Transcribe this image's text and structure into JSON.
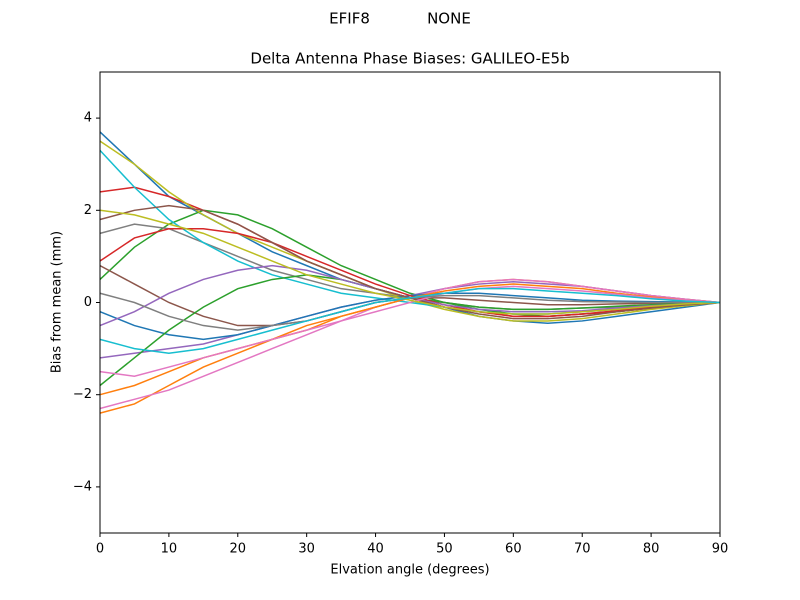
{
  "chart_data": {
    "type": "line",
    "suptitle": "EFIF8            NONE",
    "title": "Delta Antenna Phase Biases: GALILEO-E5b",
    "xlabel": "Elvation angle (degrees)",
    "ylabel": "Bias from mean (mm)",
    "x": [
      0,
      5,
      10,
      15,
      20,
      25,
      30,
      35,
      40,
      45,
      50,
      55,
      60,
      65,
      70,
      75,
      80,
      85,
      90
    ],
    "xlim": [
      0,
      90
    ],
    "xticks": [
      0,
      10,
      20,
      30,
      40,
      50,
      60,
      70,
      80,
      90
    ],
    "ylim": [
      -5,
      5
    ],
    "yticks": [
      {
        "value": -4,
        "label": "−4"
      },
      {
        "value": -2,
        "label": "−2"
      },
      0,
      2,
      4
    ],
    "grid": false,
    "series": [
      {
        "color": "#1f77b4",
        "values": [
          3.7,
          3.0,
          2.3,
          1.9,
          1.5,
          1.1,
          0.8,
          0.5,
          0.3,
          0.1,
          -0.1,
          -0.3,
          -0.4,
          -0.45,
          -0.4,
          -0.3,
          -0.2,
          -0.1,
          0
        ]
      },
      {
        "color": "#ff7f0e",
        "values": [
          -2.4,
          -2.2,
          -1.8,
          -1.4,
          -1.1,
          -0.8,
          -0.5,
          -0.3,
          -0.1,
          0.1,
          0.3,
          0.45,
          0.5,
          0.45,
          0.35,
          0.25,
          0.15,
          0.07,
          0
        ]
      },
      {
        "color": "#2ca02c",
        "values": [
          0.5,
          1.2,
          1.7,
          2.0,
          1.9,
          1.6,
          1.2,
          0.8,
          0.5,
          0.2,
          0,
          -0.15,
          -0.25,
          -0.3,
          -0.25,
          -0.2,
          -0.12,
          -0.05,
          0
        ]
      },
      {
        "color": "#d62728",
        "values": [
          2.4,
          2.5,
          2.3,
          2.0,
          1.7,
          1.3,
          0.9,
          0.6,
          0.3,
          0.1,
          -0.1,
          -0.2,
          -0.3,
          -0.3,
          -0.25,
          -0.2,
          -0.12,
          -0.05,
          0
        ]
      },
      {
        "color": "#9467bd",
        "values": [
          -1.2,
          -1.1,
          -1.0,
          -0.9,
          -0.7,
          -0.5,
          -0.3,
          -0.1,
          0.05,
          0.15,
          0.3,
          0.4,
          0.45,
          0.4,
          0.35,
          0.25,
          0.15,
          0.07,
          0
        ]
      },
      {
        "color": "#8c564b",
        "values": [
          0.8,
          0.4,
          0.0,
          -0.3,
          -0.5,
          -0.5,
          -0.4,
          -0.2,
          0,
          0.1,
          0.1,
          0.05,
          0,
          -0.05,
          -0.05,
          -0.03,
          -0.02,
          -0.01,
          0
        ]
      },
      {
        "color": "#e377c2",
        "values": [
          -2.3,
          -2.1,
          -1.9,
          -1.6,
          -1.3,
          -1.0,
          -0.7,
          -0.4,
          -0.1,
          0.1,
          0.3,
          0.45,
          0.5,
          0.45,
          0.35,
          0.25,
          0.15,
          0.07,
          0
        ]
      },
      {
        "color": "#7f7f7f",
        "values": [
          1.5,
          1.7,
          1.6,
          1.3,
          1.0,
          0.7,
          0.5,
          0.3,
          0.2,
          0.1,
          0,
          -0.1,
          -0.15,
          -0.15,
          -0.12,
          -0.1,
          -0.06,
          -0.03,
          0
        ]
      },
      {
        "color": "#bcbd22",
        "values": [
          3.5,
          3.0,
          2.4,
          1.9,
          1.5,
          1.2,
          0.9,
          0.6,
          0.3,
          0.05,
          -0.15,
          -0.3,
          -0.4,
          -0.4,
          -0.35,
          -0.25,
          -0.15,
          -0.07,
          0
        ]
      },
      {
        "color": "#17becf",
        "values": [
          3.3,
          2.5,
          1.8,
          1.3,
          0.9,
          0.6,
          0.4,
          0.2,
          0.1,
          0,
          -0.1,
          -0.2,
          -0.25,
          -0.25,
          -0.2,
          -0.15,
          -0.1,
          -0.05,
          0
        ]
      },
      {
        "color": "#1f77b4",
        "values": [
          -0.2,
          -0.5,
          -0.7,
          -0.8,
          -0.7,
          -0.5,
          -0.3,
          -0.1,
          0.05,
          0.15,
          0.2,
          0.2,
          0.15,
          0.1,
          0.05,
          0.03,
          0.02,
          0.01,
          0
        ]
      },
      {
        "color": "#ff7f0e",
        "values": [
          -2.0,
          -1.8,
          -1.5,
          -1.2,
          -1.0,
          -0.8,
          -0.6,
          -0.3,
          -0.1,
          0.1,
          0.25,
          0.35,
          0.4,
          0.35,
          0.3,
          0.2,
          0.12,
          0.05,
          0
        ]
      },
      {
        "color": "#2ca02c",
        "values": [
          -1.8,
          -1.2,
          -0.6,
          -0.1,
          0.3,
          0.5,
          0.6,
          0.5,
          0.3,
          0.1,
          0,
          -0.1,
          -0.15,
          -0.15,
          -0.12,
          -0.08,
          -0.05,
          -0.02,
          0
        ]
      },
      {
        "color": "#d62728",
        "values": [
          0.9,
          1.4,
          1.6,
          1.6,
          1.5,
          1.3,
          1.0,
          0.7,
          0.4,
          0.15,
          -0.05,
          -0.2,
          -0.3,
          -0.3,
          -0.25,
          -0.18,
          -0.1,
          -0.05,
          0
        ]
      },
      {
        "color": "#9467bd",
        "values": [
          -0.5,
          -0.2,
          0.2,
          0.5,
          0.7,
          0.8,
          0.7,
          0.5,
          0.3,
          0.1,
          -0.05,
          -0.15,
          -0.2,
          -0.2,
          -0.18,
          -0.12,
          -0.07,
          -0.03,
          0
        ]
      },
      {
        "color": "#8c564b",
        "values": [
          1.8,
          2.0,
          2.1,
          2.0,
          1.7,
          1.3,
          0.9,
          0.6,
          0.3,
          0.1,
          -0.1,
          -0.25,
          -0.35,
          -0.35,
          -0.3,
          -0.2,
          -0.12,
          -0.05,
          0
        ]
      },
      {
        "color": "#e377c2",
        "values": [
          -1.5,
          -1.6,
          -1.4,
          -1.2,
          -1.0,
          -0.8,
          -0.6,
          -0.4,
          -0.2,
          0,
          0.2,
          0.3,
          0.35,
          0.3,
          0.25,
          0.18,
          0.1,
          0.05,
          0
        ]
      },
      {
        "color": "#7f7f7f",
        "values": [
          0.2,
          0.0,
          -0.3,
          -0.5,
          -0.6,
          -0.5,
          -0.4,
          -0.2,
          0,
          0.1,
          0.15,
          0.15,
          0.1,
          0.05,
          0.02,
          0.01,
          0,
          0,
          0
        ]
      },
      {
        "color": "#bcbd22",
        "values": [
          2.0,
          1.9,
          1.7,
          1.5,
          1.2,
          0.9,
          0.6,
          0.4,
          0.2,
          0.05,
          -0.1,
          -0.2,
          -0.25,
          -0.25,
          -0.2,
          -0.15,
          -0.08,
          -0.03,
          0
        ]
      },
      {
        "color": "#17becf",
        "values": [
          -0.8,
          -1.0,
          -1.1,
          -1.0,
          -0.8,
          -0.6,
          -0.4,
          -0.2,
          0,
          0.1,
          0.2,
          0.3,
          0.3,
          0.25,
          0.2,
          0.15,
          0.08,
          0.03,
          0
        ]
      }
    ]
  }
}
